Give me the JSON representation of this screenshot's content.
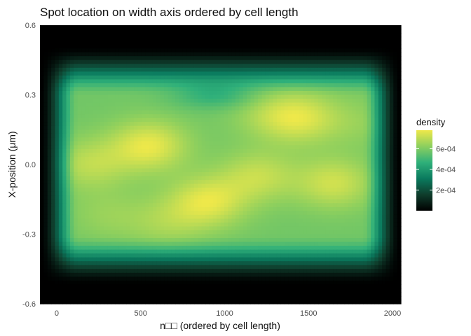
{
  "chart_data": {
    "type": "heatmap",
    "title": "Spot location on width axis ordered by cell length",
    "xlabel": "n□□ (ordered by cell length)",
    "ylabel": "X-position (μm)",
    "xlim": [
      -100,
      2050
    ],
    "ylim": [
      -0.6,
      0.6
    ],
    "x_ticks": [
      {
        "value": 0,
        "label": "0"
      },
      {
        "value": 500,
        "label": "500"
      },
      {
        "value": 1000,
        "label": "1000"
      },
      {
        "value": 1500,
        "label": "1500"
      },
      {
        "value": 2000,
        "label": "2000"
      }
    ],
    "y_ticks": [
      {
        "value": 0.6,
        "label": "0.6"
      },
      {
        "value": 0.3,
        "label": "0.3"
      },
      {
        "value": 0.0,
        "label": "0.0"
      },
      {
        "value": -0.3,
        "label": "-0.3"
      },
      {
        "value": -0.6,
        "label": "-0.6"
      }
    ],
    "grid": false,
    "legend": {
      "title": "density",
      "position": "right",
      "min": 0,
      "max": 0.00078,
      "ticks": [
        {
          "value": 0.0002,
          "label": "2e-04"
        },
        {
          "value": 0.0004,
          "label": "4e-04"
        },
        {
          "value": 0.0006,
          "label": "6e-04"
        }
      ],
      "colors": [
        "#000000",
        "#0f3d2c",
        "#0a7a5e",
        "#2fb07a",
        "#8ccf5e",
        "#eee84a"
      ]
    },
    "density_extent": {
      "x": [
        -100,
        2050
      ],
      "y": [
        -0.6,
        0.6
      ],
      "inner_x": [
        20,
        1930
      ],
      "inner_y": [
        -0.4,
        0.39
      ]
    },
    "density_peaks": [
      {
        "x": 550,
        "y": 0.08,
        "value": 0.00077
      },
      {
        "x": 900,
        "y": -0.16,
        "value": 0.00076
      },
      {
        "x": 1450,
        "y": 0.2,
        "value": 0.00074
      },
      {
        "x": 1650,
        "y": -0.08,
        "value": 0.00073
      },
      {
        "x": 200,
        "y": 0.0,
        "value": 0.0007
      },
      {
        "x": 1200,
        "y": -0.05,
        "value": 0.00071
      },
      {
        "x": 650,
        "y": -0.25,
        "value": 0.00066
      },
      {
        "x": 1250,
        "y": 0.22,
        "value": 0.00065
      },
      {
        "x": 1800,
        "y": 0.18,
        "value": 0.00063
      },
      {
        "x": 300,
        "y": -0.22,
        "value": 0.00064
      }
    ]
  }
}
